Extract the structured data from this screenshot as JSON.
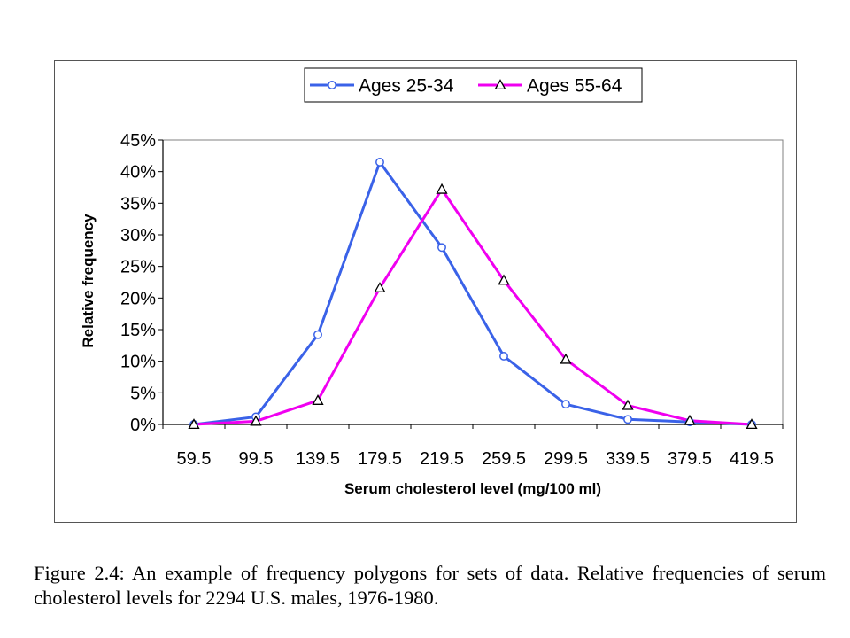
{
  "chart_data": {
    "type": "line",
    "x": [
      "59.5",
      "99.5",
      "139.5",
      "179.5",
      "219.5",
      "259.5",
      "299.5",
      "339.5",
      "379.5",
      "419.5"
    ],
    "series": [
      {
        "name": "Ages 25-34",
        "values": [
          0.0,
          1.2,
          14.2,
          41.5,
          28.0,
          10.8,
          3.2,
          0.8,
          0.4,
          0.0
        ],
        "color": "#3a62e8",
        "marker": "circle"
      },
      {
        "name": "Ages 55-64",
        "values": [
          0.0,
          0.5,
          3.8,
          21.6,
          37.2,
          22.8,
          10.3,
          3.0,
          0.6,
          0.0
        ],
        "color": "#f000f0",
        "marker": "triangle"
      }
    ],
    "yticks": [
      "0%",
      "5%",
      "10%",
      "15%",
      "20%",
      "25%",
      "30%",
      "35%",
      "40%",
      "45%"
    ],
    "ylim": [
      0,
      45
    ],
    "ytick_step": 5,
    "xlabel": "Serum cholesterol level (mg/100 ml)",
    "ylabel": "Relative frequency",
    "title": "",
    "grid": false,
    "legend_position": "top"
  },
  "caption": {
    "label": "Figure 2.4:",
    "text": "An example of frequency polygons for sets of data. Relative frequencies of serum cholesterol levels for 2294 U.S. males, 1976-1980."
  }
}
